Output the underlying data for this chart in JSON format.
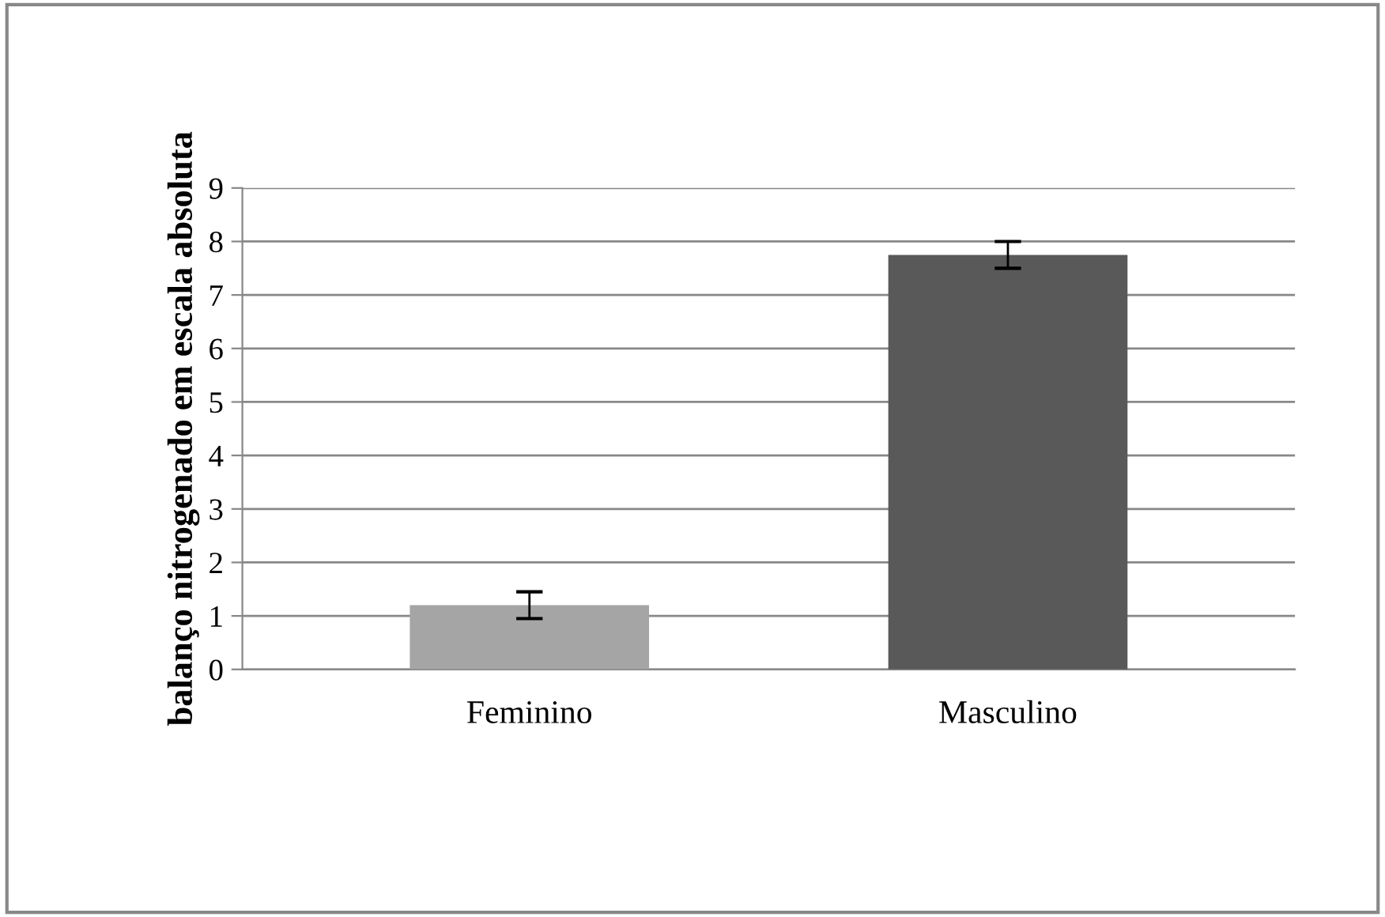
{
  "chart_data": {
    "type": "bar",
    "ylabel": "balanço nitrogenado em escala absoluta",
    "categories": [
      "Feminino",
      "Masculino"
    ],
    "values": [
      1.2,
      7.75
    ],
    "errors": [
      0.25,
      0.25
    ],
    "colors": [
      "#a5a5a5",
      "#595959"
    ],
    "ylim": [
      0,
      9
    ],
    "yticks": [
      0,
      1,
      2,
      3,
      4,
      5,
      6,
      7,
      8,
      9
    ],
    "grid": "y"
  }
}
